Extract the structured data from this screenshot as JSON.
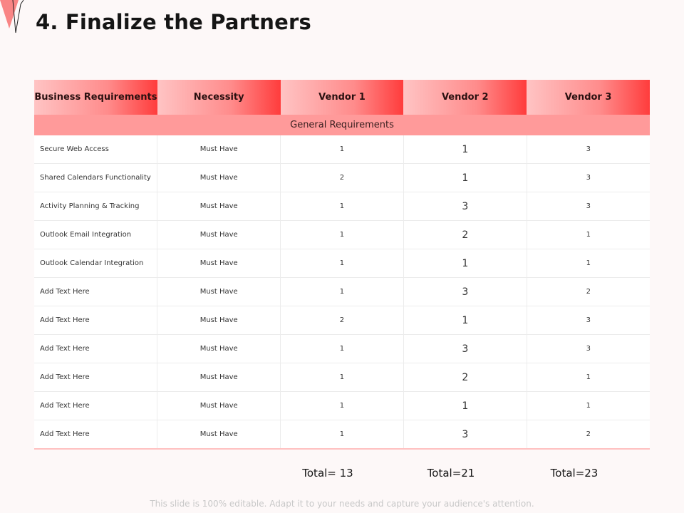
{
  "slide": {
    "title": "4. Finalize the Partners",
    "footer": "This slide is 100% editable. Adapt it to your needs and capture your audience's attention."
  },
  "table": {
    "headers": [
      "Business Requirements",
      "Necessity",
      "Vendor 1",
      "Vendor 2",
      "Vendor 3"
    ],
    "section": "General Requirements",
    "rows": [
      [
        "Secure Web Access",
        "Must Have",
        "1",
        "1",
        "3"
      ],
      [
        "Shared Calendars Functionality",
        "Must Have",
        "2",
        "1",
        "3"
      ],
      [
        "Activity Planning & Tracking",
        "Must Have",
        "1",
        "3",
        "3"
      ],
      [
        "Outlook Email Integration",
        "Must Have",
        "1",
        "2",
        "1"
      ],
      [
        "Outlook Calendar Integration",
        "Must Have",
        "1",
        "1",
        "1"
      ],
      [
        "Add Text Here",
        "Must Have",
        "1",
        "3",
        "2"
      ],
      [
        "Add Text Here",
        "Must Have",
        "2",
        "1",
        "3"
      ],
      [
        "Add Text Here",
        "Must Have",
        "1",
        "3",
        "3"
      ],
      [
        "Add Text Here",
        "Must Have",
        "1",
        "2",
        "1"
      ],
      [
        "Add Text Here",
        "Must Have",
        "1",
        "1",
        "1"
      ],
      [
        "Add Text Here",
        "Must Have",
        "1",
        "3",
        "2"
      ]
    ],
    "totals": [
      "Total= 13",
      "Total=21",
      "Total=23"
    ]
  },
  "colors": {
    "accent": "#ff3c3c",
    "header_light": "#ffc4c4",
    "section_band": "#ff9a9a"
  }
}
